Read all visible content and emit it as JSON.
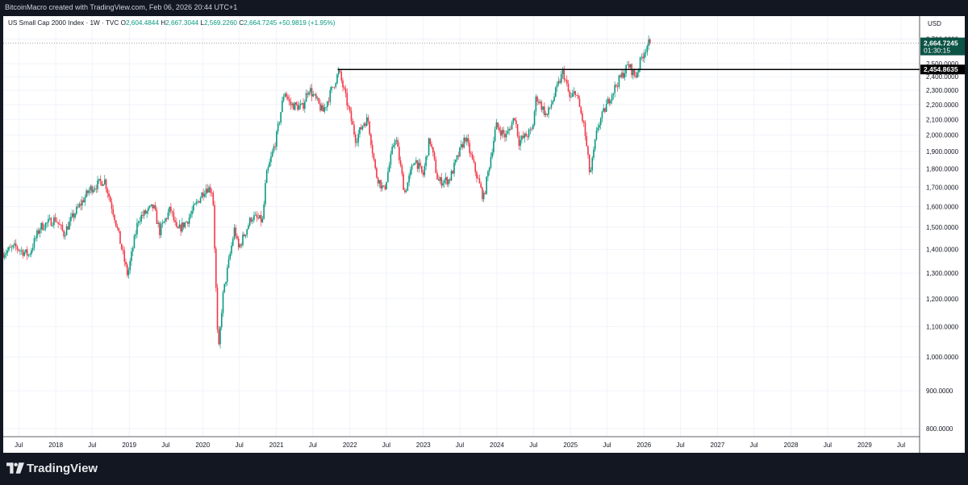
{
  "header": {
    "text": "BitcoinMacro created with TradingView.com, Feb 06, 2026 20:44 UTC+1"
  },
  "legend": {
    "symbol": "US Small Cap 2000 Index · 1W · TVC",
    "open_label": "O",
    "open": "2,604.4844",
    "high_label": "H",
    "high": "2,667.3044",
    "low_label": "L",
    "low": "2,569.2260",
    "close_label": "C",
    "close": "2,664.7245",
    "change": "+50.9819 (+1.95%)"
  },
  "footer": {
    "brand": "TradingView",
    "logo": "tradingview-logo-icon"
  },
  "colors": {
    "up": "#089981",
    "down": "#f23645",
    "price_badge": "#0b5345",
    "level_line": "#000000",
    "grid": "#f0f3fa"
  },
  "chart_data": {
    "type": "candlestick",
    "title": "US Small Cap 2000 Index",
    "interval": "1W",
    "currency": "USD",
    "y_scale": "log",
    "ylim": [
      780,
      2900
    ],
    "y_ticks": [
      800,
      900,
      1000,
      1100,
      1200,
      1300,
      1400,
      1500,
      1600,
      1700,
      1800,
      1900,
      2000,
      2100,
      2200,
      2300,
      2400,
      2500,
      2700
    ],
    "y_tick_labels": [
      "800.0000",
      "900.0000",
      "1,000.0000",
      "1,100.0000",
      "1,200.0000",
      "1,300.0000",
      "1,400.0000",
      "1,500.0000",
      "1,600.0000",
      "1,700.0000",
      "1,800.0000",
      "1,900.0000",
      "2,000.0000",
      "2,100.0000",
      "2,200.0000",
      "2,300.0000",
      "2,400.0000",
      "2,500.0000",
      "2,700.0000"
    ],
    "x_range": [
      "2017-04-15",
      "2029-10-01"
    ],
    "x_ticks": [
      {
        "date": "2017-07-01",
        "label": "Jul"
      },
      {
        "date": "2018-01-01",
        "label": "2018"
      },
      {
        "date": "2018-07-01",
        "label": "Jul"
      },
      {
        "date": "2019-01-01",
        "label": "2019"
      },
      {
        "date": "2019-07-01",
        "label": "Jul"
      },
      {
        "date": "2020-01-01",
        "label": "2020"
      },
      {
        "date": "2020-07-01",
        "label": "Jul"
      },
      {
        "date": "2021-01-01",
        "label": "2021"
      },
      {
        "date": "2021-07-01",
        "label": "Jul"
      },
      {
        "date": "2022-01-01",
        "label": "2022"
      },
      {
        "date": "2022-07-01",
        "label": "Jul"
      },
      {
        "date": "2023-01-01",
        "label": "2023"
      },
      {
        "date": "2023-07-01",
        "label": "Jul"
      },
      {
        "date": "2024-01-01",
        "label": "2024"
      },
      {
        "date": "2024-07-01",
        "label": "Jul"
      },
      {
        "date": "2025-01-01",
        "label": "2025"
      },
      {
        "date": "2025-07-01",
        "label": "Jul"
      },
      {
        "date": "2026-01-01",
        "label": "2026"
      },
      {
        "date": "2026-07-01",
        "label": "Jul"
      },
      {
        "date": "2027-01-01",
        "label": "2027"
      },
      {
        "date": "2027-07-01",
        "label": "Jul"
      },
      {
        "date": "2028-01-01",
        "label": "2028"
      },
      {
        "date": "2028-07-01",
        "label": "Jul"
      },
      {
        "date": "2029-01-01",
        "label": "2029"
      },
      {
        "date": "2029-07-01",
        "label": "Jul"
      }
    ],
    "last_price": {
      "value": 2664.7245,
      "label": "2,664.7245",
      "countdown": "01:30:15"
    },
    "level": {
      "value": 2454.8635,
      "label": "2,454.8635",
      "start": "2021-11-01"
    },
    "anchors": [
      [
        "2017-04-15",
        1385
      ],
      [
        "2017-06-15",
        1410
      ],
      [
        "2017-08-20",
        1375
      ],
      [
        "2017-10-15",
        1500
      ],
      [
        "2017-12-31",
        1540
      ],
      [
        "2018-02-10",
        1470
      ],
      [
        "2018-04-01",
        1560
      ],
      [
        "2018-06-20",
        1690
      ],
      [
        "2018-08-31",
        1740
      ],
      [
        "2018-10-20",
        1550
      ],
      [
        "2018-12-24",
        1290
      ],
      [
        "2019-02-15",
        1540
      ],
      [
        "2019-05-01",
        1600
      ],
      [
        "2019-06-01",
        1480
      ],
      [
        "2019-07-25",
        1590
      ],
      [
        "2019-08-25",
        1480
      ],
      [
        "2019-10-15",
        1530
      ],
      [
        "2019-12-31",
        1670
      ],
      [
        "2020-01-20",
        1700
      ],
      [
        "2020-02-20",
        1680
      ],
      [
        "2020-03-18",
        1000
      ],
      [
        "2020-04-08",
        1200
      ],
      [
        "2020-06-08",
        1500
      ],
      [
        "2020-06-25",
        1400
      ],
      [
        "2020-08-31",
        1550
      ],
      [
        "2020-10-25",
        1530
      ],
      [
        "2020-11-10",
        1750
      ],
      [
        "2020-12-31",
        1980
      ],
      [
        "2021-02-10",
        2300
      ],
      [
        "2021-03-10",
        2200
      ],
      [
        "2021-05-10",
        2180
      ],
      [
        "2021-06-10",
        2320
      ],
      [
        "2021-08-20",
        2150
      ],
      [
        "2021-11-08",
        2440
      ],
      [
        "2021-12-20",
        2200
      ],
      [
        "2022-01-31",
        1970
      ],
      [
        "2022-03-10",
        2080
      ],
      [
        "2022-04-01",
        2100
      ],
      [
        "2022-05-10",
        1770
      ],
      [
        "2022-06-20",
        1680
      ],
      [
        "2022-08-15",
        2000
      ],
      [
        "2022-09-30",
        1670
      ],
      [
        "2022-11-20",
        1860
      ],
      [
        "2022-12-30",
        1760
      ],
      [
        "2023-02-01",
        1980
      ],
      [
        "2023-03-15",
        1730
      ],
      [
        "2023-05-10",
        1740
      ],
      [
        "2023-07-28",
        1990
      ],
      [
        "2023-10-27",
        1640
      ],
      [
        "2023-12-28",
        2060
      ],
      [
        "2024-02-15",
        1990
      ],
      [
        "2024-03-30",
        2120
      ],
      [
        "2024-04-20",
        1960
      ],
      [
        "2024-06-25",
        2030
      ],
      [
        "2024-07-15",
        2260
      ],
      [
        "2024-09-05",
        2120
      ],
      [
        "2024-11-25",
        2440
      ],
      [
        "2024-12-31",
        2230
      ],
      [
        "2025-01-25",
        2300
      ],
      [
        "2025-03-10",
        2050
      ],
      [
        "2025-04-08",
        1760
      ],
      [
        "2025-05-15",
        2050
      ],
      [
        "2025-07-15",
        2250
      ],
      [
        "2025-08-20",
        2350
      ],
      [
        "2025-10-15",
        2490
      ],
      [
        "2025-11-20",
        2400
      ],
      [
        "2025-12-20",
        2550
      ],
      [
        "2026-01-20",
        2660
      ],
      [
        "2026-02-06",
        2664.7245
      ]
    ]
  }
}
